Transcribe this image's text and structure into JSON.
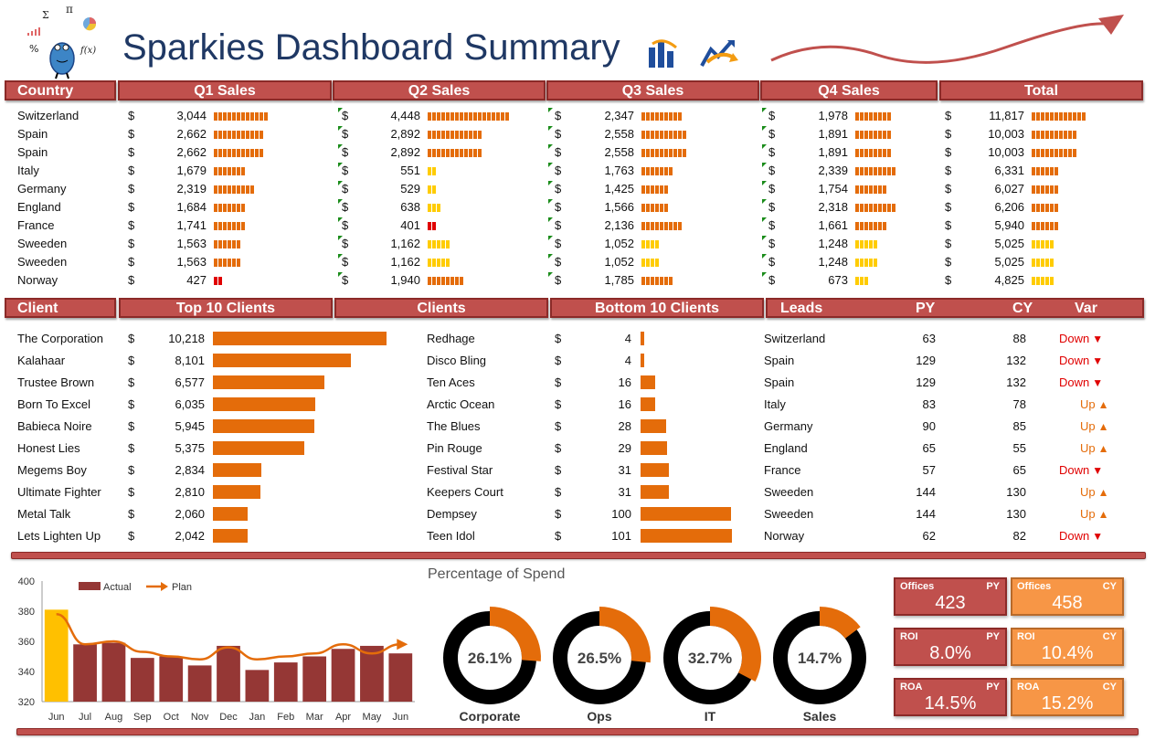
{
  "title": "Sparkies Dashboard Summary",
  "colors": {
    "header": "#c0504d",
    "orange": "#e46c0a",
    "yellow": "#ffcc00",
    "red": "#e00000",
    "actual": "#953735",
    "highlight": "#ffc000"
  },
  "sales_table": {
    "headers": [
      "Country",
      "Q1 Sales",
      "Q2 Sales",
      "Q3 Sales",
      "Q4 Sales",
      "Total"
    ],
    "currency": "$",
    "rows": [
      {
        "country": "Switzerland",
        "q1": "3,044",
        "q2": "4,448",
        "q3": "2,347",
        "q4": "1,978",
        "total": "11,817"
      },
      {
        "country": "Spain",
        "q1": "2,662",
        "q2": "2,892",
        "q3": "2,558",
        "q4": "1,891",
        "total": "10,003"
      },
      {
        "country": "Spain",
        "q1": "2,662",
        "q2": "2,892",
        "q3": "2,558",
        "q4": "1,891",
        "total": "10,003"
      },
      {
        "country": "Italy",
        "q1": "1,679",
        "q2": "551",
        "q3": "1,763",
        "q4": "2,339",
        "total": "6,331"
      },
      {
        "country": "Germany",
        "q1": "2,319",
        "q2": "529",
        "q3": "1,425",
        "q4": "1,754",
        "total": "6,027"
      },
      {
        "country": "England",
        "q1": "1,684",
        "q2": "638",
        "q3": "1,566",
        "q4": "2,318",
        "total": "6,206"
      },
      {
        "country": "France",
        "q1": "1,741",
        "q2": "401",
        "q3": "2,136",
        "q4": "1,661",
        "total": "5,940"
      },
      {
        "country": "Sweeden",
        "q1": "1,563",
        "q2": "1,162",
        "q3": "1,052",
        "q4": "1,248",
        "total": "5,025"
      },
      {
        "country": "Sweeden",
        "q1": "1,563",
        "q2": "1,162",
        "q3": "1,052",
        "q4": "1,248",
        "total": "5,025"
      },
      {
        "country": "Norway",
        "q1": "427",
        "q2": "1,940",
        "q3": "1,785",
        "q4": "673",
        "total": "4,825"
      }
    ]
  },
  "clients_table": {
    "headers": [
      "Client",
      "Top 10 Clients",
      "Clients",
      "Bottom 10 Clients"
    ],
    "top": [
      {
        "name": "The Corporation",
        "value": "10,218"
      },
      {
        "name": "Kalahaar",
        "value": "8,101"
      },
      {
        "name": "Trustee Brown",
        "value": "6,577"
      },
      {
        "name": "Born To Excel",
        "value": "6,035"
      },
      {
        "name": "Babieca Noire",
        "value": "5,945"
      },
      {
        "name": "Honest Lies",
        "value": "5,375"
      },
      {
        "name": "Megems Boy",
        "value": "2,834"
      },
      {
        "name": "Ultimate Fighter",
        "value": "2,810"
      },
      {
        "name": "Metal Talk",
        "value": "2,060"
      },
      {
        "name": "Lets Lighten Up",
        "value": "2,042"
      }
    ],
    "bottom": [
      {
        "name": "Redhage",
        "value": "4"
      },
      {
        "name": "Disco Bling",
        "value": "4"
      },
      {
        "name": "Ten Aces",
        "value": "16"
      },
      {
        "name": "Arctic Ocean",
        "value": "16"
      },
      {
        "name": "The Blues",
        "value": "28"
      },
      {
        "name": "Pin Rouge",
        "value": "29"
      },
      {
        "name": "Festival Star",
        "value": "31"
      },
      {
        "name": "Keepers Court",
        "value": "31"
      },
      {
        "name": "Dempsey",
        "value": "100"
      },
      {
        "name": "Teen Idol",
        "value": "101"
      }
    ]
  },
  "leads_table": {
    "headers": [
      "Leads",
      "PY",
      "CY",
      "Var"
    ],
    "rows": [
      {
        "country": "Switzerland",
        "py": "63",
        "cy": "88",
        "var": "Down",
        "dir": "down"
      },
      {
        "country": "Spain",
        "py": "129",
        "cy": "132",
        "var": "Down",
        "dir": "down"
      },
      {
        "country": "Spain",
        "py": "129",
        "cy": "132",
        "var": "Down",
        "dir": "down"
      },
      {
        "country": "Italy",
        "py": "83",
        "cy": "78",
        "var": "Up",
        "dir": "up"
      },
      {
        "country": "Germany",
        "py": "90",
        "cy": "85",
        "var": "Up",
        "dir": "up"
      },
      {
        "country": "England",
        "py": "65",
        "cy": "55",
        "var": "Up",
        "dir": "up"
      },
      {
        "country": "France",
        "py": "57",
        "cy": "65",
        "var": "Down",
        "dir": "down"
      },
      {
        "country": "Sweeden",
        "py": "144",
        "cy": "130",
        "var": "Up",
        "dir": "up"
      },
      {
        "country": "Sweeden",
        "py": "144",
        "cy": "130",
        "var": "Up",
        "dir": "up"
      },
      {
        "country": "Norway",
        "py": "62",
        "cy": "82",
        "var": "Down",
        "dir": "down"
      }
    ]
  },
  "chart_data": [
    {
      "type": "bar",
      "categories": [
        "Jun",
        "Jul",
        "Aug",
        "Sep",
        "Oct",
        "Nov",
        "Dec",
        "Jan",
        "Feb",
        "Mar",
        "Apr",
        "May",
        "Jun"
      ],
      "series": [
        {
          "name": "Actual",
          "type": "bar",
          "values": [
            381,
            358,
            359,
            349,
            350,
            344,
            357,
            341,
            346,
            350,
            355,
            357,
            352
          ]
        },
        {
          "name": "Plan",
          "type": "line",
          "values": [
            378,
            358,
            360,
            353,
            350,
            348,
            356,
            348,
            350,
            352,
            358,
            352,
            358
          ]
        }
      ],
      "yticks": [
        320,
        340,
        360,
        380,
        400
      ],
      "ylim": [
        320,
        400
      ],
      "highlight_index": 0,
      "legend": "top-left"
    },
    {
      "type": "pie",
      "title": "Percentage of Spend",
      "slices": [
        {
          "label": "Corporate",
          "value": 26.1,
          "display": "26.1%"
        },
        {
          "label": "Ops",
          "value": 26.5,
          "display": "26.5%"
        },
        {
          "label": "IT",
          "value": 32.7,
          "display": "32.7%"
        },
        {
          "label": "Sales",
          "value": 14.7,
          "display": "14.7%"
        }
      ]
    }
  ],
  "kpis": [
    {
      "label": "Offices",
      "period": "PY",
      "value": "423"
    },
    {
      "label": "Offices",
      "period": "CY",
      "value": "458"
    },
    {
      "label": "ROI",
      "period": "PY",
      "value": "8.0%"
    },
    {
      "label": "ROI",
      "period": "CY",
      "value": "10.4%"
    },
    {
      "label": "ROA",
      "period": "PY",
      "value": "14.5%"
    },
    {
      "label": "ROA",
      "period": "CY",
      "value": "15.2%"
    }
  ]
}
